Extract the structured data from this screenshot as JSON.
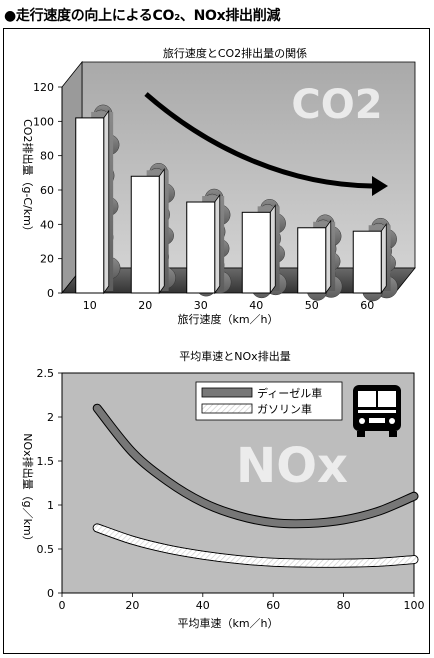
{
  "page_title": "●走行速度の向上によるCO₂、NOx排出削減",
  "chart_data": [
    {
      "type": "bar",
      "title": "旅行速度とCO2排出量の関係",
      "watermark": "CO2",
      "categories": [
        "10",
        "20",
        "30",
        "40",
        "50",
        "60"
      ],
      "values": [
        102,
        68,
        53,
        47,
        38,
        36
      ],
      "xlabel": "旅行速度（km／h）",
      "ylabel": "CO2排出量（g-C/km）",
      "ylim": [
        0,
        120
      ],
      "yticks": [
        "0",
        "20",
        "40",
        "60",
        "80",
        "100",
        "120"
      ],
      "grid": false,
      "colors": {
        "bar": "#ffffff",
        "wall": "#b8b8b8",
        "floor": "#4a4a4a",
        "smoke": "#777777"
      }
    },
    {
      "type": "line",
      "title": "平均車速とNOx排出量",
      "watermark": "NOx",
      "xlabel": "平均車速（km／h）",
      "ylabel": "NOx排出量（g／km）",
      "xlim": [
        0,
        100
      ],
      "ylim": [
        0,
        2.5
      ],
      "xticks": [
        "0",
        "20",
        "40",
        "60",
        "80",
        "100"
      ],
      "yticks": [
        "0",
        "0.5",
        "1",
        "1.5",
        "2",
        "2.5"
      ],
      "legend_position": "top-right",
      "series": [
        {
          "name": "ディーゼル車",
          "color": "#777777",
          "x": [
            10,
            20,
            30,
            40,
            50,
            60,
            70,
            80,
            90,
            100
          ],
          "y": [
            2.1,
            1.6,
            1.27,
            1.03,
            0.88,
            0.8,
            0.79,
            0.83,
            0.93,
            1.1
          ]
        },
        {
          "name": "ガソリン車",
          "color": "#ffffff",
          "x": [
            10,
            20,
            30,
            40,
            50,
            60,
            70,
            80,
            90,
            100
          ],
          "y": [
            0.74,
            0.6,
            0.5,
            0.43,
            0.38,
            0.35,
            0.34,
            0.34,
            0.35,
            0.38
          ]
        }
      ]
    }
  ]
}
